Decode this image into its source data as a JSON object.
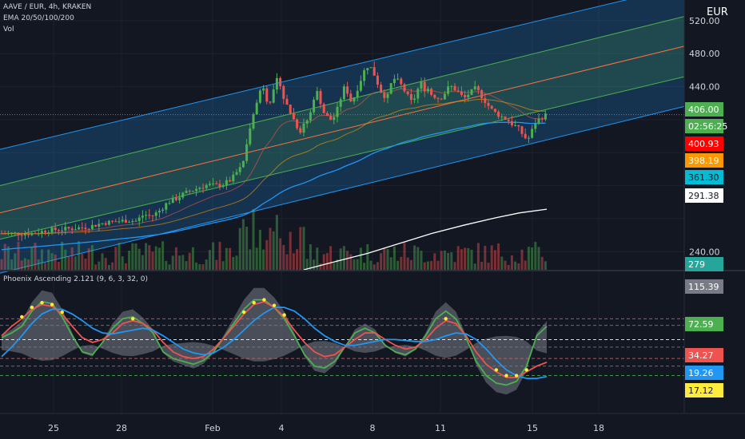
{
  "header": {
    "symbol_line": "AAVE / EUR, 4h, KRAKEN",
    "ema_line": "EMA 20/50/100/200",
    "vol_line": "Vol",
    "currency": "EUR",
    "osc_line": "Phoenix Ascending 2.121 (9, 6, 3, 32, 0)"
  },
  "colors": {
    "background": "#131722",
    "bull": "#26a69a",
    "bull_candle": "#4caf50",
    "bear": "#ef5350",
    "channel_blue": "#2196f3",
    "channel_green": "#4caf50",
    "channel_mid": "#ff7043",
    "ema100": "#2196f3",
    "ema200": "#ffffff"
  },
  "chart_data": [
    {
      "type": "candlestick",
      "pair": "AAVE / EUR",
      "timeframe": "4h",
      "exchange": "KRAKEN",
      "yaxis": {
        "label": "EUR",
        "ticks": [
          520,
          480,
          440,
          240
        ],
        "range": [
          218,
          545
        ]
      },
      "xaxis": {
        "ticks": [
          "25",
          "28",
          "Feb",
          "4",
          "8",
          "11",
          "15",
          "18"
        ]
      },
      "close_price": "406.00",
      "countdown": "02:56:25",
      "price_tags": [
        {
          "label": "406.00",
          "value": 406.0,
          "color": "#4caf50"
        },
        {
          "label": "400.93",
          "value": 400.93,
          "color": "#ff0000"
        },
        {
          "label": "398.19",
          "value": 398.19,
          "color": "#ff9800"
        },
        {
          "label": "361.30",
          "value": 361.3,
          "color": "#00bcd4"
        },
        {
          "label": "291.38",
          "value": 291.38,
          "color": "#ffffff"
        }
      ],
      "volume_tag": "279",
      "path": [
        [
          0,
          262
        ],
        [
          40,
          262
        ],
        [
          60,
          266
        ],
        [
          90,
          268
        ],
        [
          110,
          270
        ],
        [
          130,
          275
        ],
        [
          150,
          277
        ],
        [
          160,
          278
        ],
        [
          170,
          277
        ],
        [
          180,
          285
        ],
        [
          190,
          283
        ],
        [
          200,
          290
        ],
        [
          210,
          300
        ],
        [
          220,
          304
        ],
        [
          230,
          310
        ],
        [
          240,
          314
        ],
        [
          250,
          318
        ],
        [
          260,
          321
        ],
        [
          270,
          320
        ],
        [
          280,
          322
        ],
        [
          290,
          328
        ],
        [
          295,
          335
        ],
        [
          300,
          340
        ],
        [
          305,
          352
        ],
        [
          310,
          375
        ],
        [
          315,
          405
        ],
        [
          320,
          415
        ],
        [
          325,
          435
        ],
        [
          330,
          440
        ],
        [
          335,
          420
        ],
        [
          340,
          425
        ],
        [
          345,
          445
        ],
        [
          348,
          450
        ],
        [
          352,
          440
        ],
        [
          355,
          425
        ],
        [
          360,
          415
        ],
        [
          365,
          405
        ],
        [
          370,
          395
        ],
        [
          375,
          385
        ],
        [
          380,
          395
        ],
        [
          385,
          400
        ],
        [
          390,
          412
        ],
        [
          392,
          425
        ],
        [
          396,
          435
        ],
        [
          400,
          425
        ],
        [
          404,
          410
        ],
        [
          408,
          405
        ],
        [
          412,
          400
        ],
        [
          416,
          400
        ],
        [
          420,
          408
        ],
        [
          425,
          420
        ],
        [
          428,
          435
        ],
        [
          432,
          440
        ],
        [
          436,
          430
        ],
        [
          440,
          420
        ],
        [
          444,
          430
        ],
        [
          448,
          440
        ],
        [
          452,
          450
        ],
        [
          456,
          460
        ],
        [
          460,
          465
        ],
        [
          465,
          462
        ],
        [
          468,
          455
        ],
        [
          472,
          445
        ],
        [
          476,
          435
        ],
        [
          480,
          430
        ],
        [
          484,
          425
        ],
        [
          488,
          440
        ],
        [
          492,
          450
        ],
        [
          496,
          448
        ],
        [
          500,
          445
        ],
        [
          504,
          438
        ],
        [
          508,
          432
        ],
        [
          512,
          425
        ],
        [
          516,
          420
        ],
        [
          520,
          430
        ],
        [
          524,
          440
        ],
        [
          528,
          445
        ],
        [
          532,
          435
        ],
        [
          536,
          438
        ],
        [
          540,
          430
        ],
        [
          545,
          428
        ],
        [
          550,
          425
        ],
        [
          555,
          430
        ],
        [
          560,
          438
        ],
        [
          565,
          440
        ],
        [
          570,
          436
        ],
        [
          575,
          432
        ],
        [
          580,
          425
        ],
        [
          585,
          430
        ],
        [
          590,
          434
        ],
        [
          595,
          438
        ],
        [
          600,
          432
        ],
        [
          605,
          425
        ],
        [
          610,
          418
        ],
        [
          615,
          412
        ],
        [
          620,
          408
        ],
        [
          625,
          405
        ],
        [
          630,
          402
        ],
        [
          635,
          400
        ],
        [
          640,
          395
        ],
        [
          645,
          392
        ],
        [
          650,
          388
        ],
        [
          655,
          380
        ],
        [
          660,
          375
        ],
        [
          665,
          385
        ],
        [
          668,
          395
        ],
        [
          672,
          398
        ],
        [
          676,
          402
        ],
        [
          680,
          404
        ],
        [
          684,
          406
        ]
      ]
    },
    {
      "type": "line",
      "title": "Phoenix Ascending 2.121 (9, 6, 3, 32, 0)",
      "yaxis": {
        "ticks": [
          "72.59"
        ],
        "range": [
          -20,
          130
        ]
      },
      "levels": [
        80,
        73,
        58,
        50,
        38,
        30,
        20
      ],
      "value_tags": [
        {
          "label": "115.39",
          "value": 115.39,
          "color": "#787b86"
        },
        {
          "label": "72.59",
          "value": 72.59,
          "color": "#4caf50"
        },
        {
          "label": "34.27",
          "value": 34.27,
          "color": "#ef5350"
        },
        {
          "label": "19.26",
          "value": 19.26,
          "color": "#2196f3"
        },
        {
          "label": "17.12",
          "value": 17.12,
          "color": "#ffeb3b"
        }
      ],
      "series": [
        {
          "color": "#4caf50",
          "values": [
            60,
            65,
            72,
            88,
            98,
            96,
            82,
            62,
            45,
            42,
            55,
            70,
            80,
            82,
            75,
            65,
            45,
            38,
            35,
            32,
            36,
            45,
            60,
            75,
            90,
            100,
            100,
            92,
            80,
            62,
            42,
            30,
            28,
            35,
            50,
            65,
            70,
            65,
            52,
            45,
            42,
            48,
            62,
            80,
            88,
            80,
            60,
            35,
            20,
            12,
            10,
            14,
            30,
            62,
            72
          ]
        },
        {
          "color": "#ef5350",
          "values": [
            62,
            72,
            80,
            90,
            95,
            93,
            85,
            72,
            60,
            55,
            58,
            65,
            75,
            78,
            75,
            68,
            55,
            45,
            40,
            38,
            40,
            48,
            60,
            72,
            85,
            95,
            98,
            92,
            82,
            68,
            55,
            45,
            40,
            42,
            50,
            58,
            65,
            65,
            58,
            52,
            48,
            50,
            58,
            70,
            78,
            75,
            62,
            45,
            32,
            24,
            18,
            18,
            24,
            30,
            34
          ]
        },
        {
          "color": "#2196f3",
          "values": [
            40,
            50,
            62,
            75,
            85,
            90,
            90,
            85,
            78,
            70,
            65,
            64,
            66,
            68,
            70,
            68,
            62,
            55,
            48,
            44,
            42,
            44,
            50,
            58,
            68,
            78,
            86,
            92,
            92,
            88,
            80,
            70,
            62,
            56,
            52,
            52,
            54,
            56,
            58,
            58,
            57,
            56,
            56,
            58,
            62,
            65,
            64,
            58,
            48,
            36,
            26,
            20,
            17,
            17,
            19
          ]
        }
      ],
      "dots_color": "#ffeb3b"
    }
  ]
}
